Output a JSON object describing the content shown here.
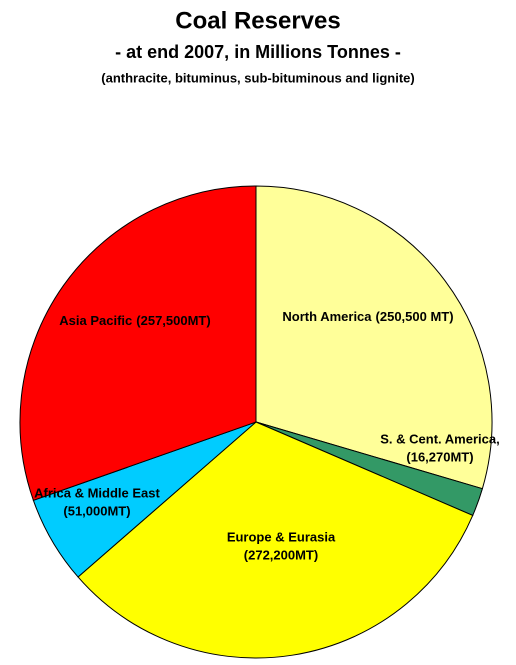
{
  "chart_data": {
    "type": "pie",
    "title": "Coal Reserves",
    "subtitle": "- at end 2007, in Millions Tonnes -",
    "note": "(anthracite, bituminus, sub-bituminous and lignite)",
    "categories": [
      "North America",
      "S. & Cent. America,",
      "Europe & Eurasia",
      "Africa & Middle East",
      "Asia Pacific"
    ],
    "values": [
      250500,
      16270,
      272200,
      51000,
      257500
    ],
    "value_labels": [
      "(250,500 MT)",
      "(16,270MT)",
      "(272,200MT)",
      "(51,000MT)",
      "(257,500MT)"
    ],
    "colors": [
      "#ffff99",
      "#339966",
      "#ffff00",
      "#00ccff",
      "#ff0000"
    ]
  }
}
